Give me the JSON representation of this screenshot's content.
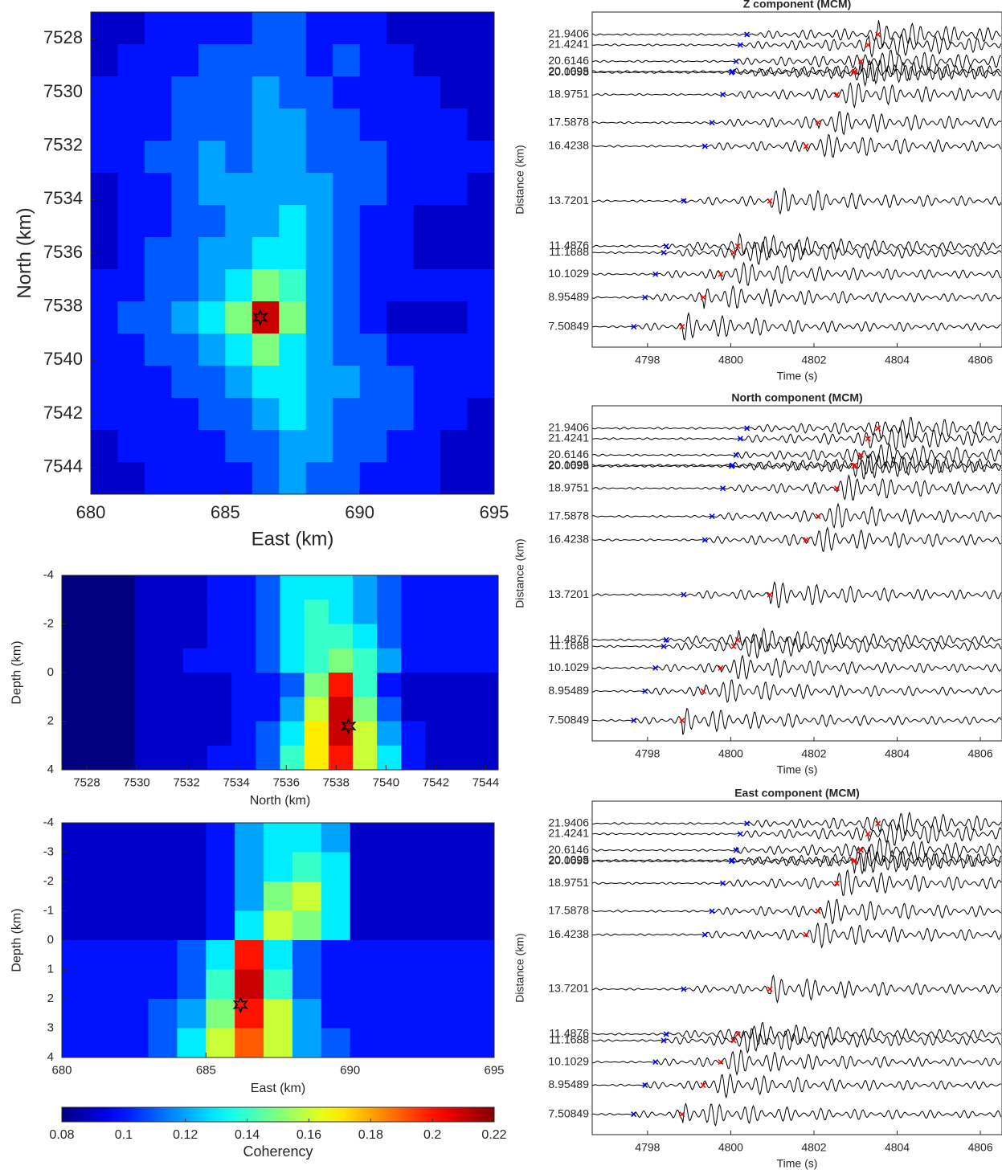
{
  "chart_data": [
    {
      "type": "heatmap",
      "xlabel": "East (km)",
      "ylabel": "North (km)",
      "xlim": [
        680,
        695
      ],
      "ylim": [
        7527,
        7545
      ],
      "yreverse": true,
      "xticks": [
        680,
        685,
        690,
        695
      ],
      "yticks": [
        7528,
        7530,
        7532,
        7534,
        7536,
        7538,
        7540,
        7542,
        7544
      ],
      "colormap": "jet",
      "clim": [
        0.08,
        0.22
      ],
      "marker": [
        686.3,
        7538.4
      ],
      "values": [
        [
          0.09,
          0.09,
          0.1,
          0.1,
          0.1,
          0.1,
          0.11,
          0.11,
          0.1,
          0.1,
          0.1,
          0.09,
          0.09,
          0.09,
          0.09
        ],
        [
          0.09,
          0.1,
          0.1,
          0.1,
          0.11,
          0.11,
          0.11,
          0.11,
          0.1,
          0.11,
          0.1,
          0.1,
          0.09,
          0.09,
          0.09
        ],
        [
          0.1,
          0.1,
          0.1,
          0.11,
          0.11,
          0.11,
          0.12,
          0.11,
          0.11,
          0.1,
          0.1,
          0.1,
          0.1,
          0.09,
          0.09
        ],
        [
          0.1,
          0.1,
          0.1,
          0.11,
          0.11,
          0.11,
          0.12,
          0.12,
          0.11,
          0.11,
          0.1,
          0.1,
          0.1,
          0.1,
          0.09
        ],
        [
          0.1,
          0.1,
          0.11,
          0.11,
          0.12,
          0.11,
          0.12,
          0.12,
          0.11,
          0.11,
          0.11,
          0.1,
          0.1,
          0.1,
          0.1
        ],
        [
          0.09,
          0.1,
          0.1,
          0.11,
          0.12,
          0.12,
          0.12,
          0.12,
          0.12,
          0.11,
          0.11,
          0.1,
          0.1,
          0.1,
          0.09
        ],
        [
          0.09,
          0.1,
          0.1,
          0.11,
          0.11,
          0.12,
          0.12,
          0.13,
          0.12,
          0.11,
          0.1,
          0.1,
          0.09,
          0.09,
          0.09
        ],
        [
          0.09,
          0.1,
          0.11,
          0.11,
          0.12,
          0.12,
          0.13,
          0.13,
          0.12,
          0.11,
          0.1,
          0.1,
          0.09,
          0.09,
          0.09
        ],
        [
          0.1,
          0.1,
          0.11,
          0.11,
          0.12,
          0.13,
          0.15,
          0.14,
          0.12,
          0.11,
          0.1,
          0.1,
          0.1,
          0.1,
          0.1
        ],
        [
          0.1,
          0.11,
          0.11,
          0.12,
          0.13,
          0.15,
          0.21,
          0.15,
          0.12,
          0.11,
          0.1,
          0.09,
          0.09,
          0.09,
          0.1
        ],
        [
          0.1,
          0.1,
          0.11,
          0.11,
          0.12,
          0.13,
          0.15,
          0.13,
          0.12,
          0.11,
          0.11,
          0.1,
          0.1,
          0.1,
          0.1
        ],
        [
          0.1,
          0.1,
          0.1,
          0.11,
          0.11,
          0.12,
          0.13,
          0.13,
          0.12,
          0.12,
          0.11,
          0.11,
          0.1,
          0.1,
          0.1
        ],
        [
          0.1,
          0.1,
          0.1,
          0.1,
          0.11,
          0.11,
          0.12,
          0.13,
          0.12,
          0.11,
          0.11,
          0.11,
          0.1,
          0.1,
          0.09
        ],
        [
          0.09,
          0.1,
          0.1,
          0.1,
          0.1,
          0.11,
          0.11,
          0.12,
          0.12,
          0.11,
          0.11,
          0.1,
          0.1,
          0.09,
          0.09
        ],
        [
          0.09,
          0.09,
          0.1,
          0.1,
          0.1,
          0.1,
          0.11,
          0.12,
          0.11,
          0.11,
          0.1,
          0.1,
          0.1,
          0.09,
          0.09
        ]
      ]
    },
    {
      "type": "heatmap",
      "xlabel": "North (km)",
      "ylabel": "Depth (km)",
      "xlim": [
        7527,
        7544.5
      ],
      "ylim": [
        -4,
        4
      ],
      "yreverse": true,
      "xticks": [
        7528,
        7530,
        7532,
        7534,
        7536,
        7538,
        7540,
        7542,
        7544
      ],
      "yticks": [
        -4,
        -2,
        0,
        2,
        4
      ],
      "colormap": "jet",
      "clim": [
        0.08,
        0.22
      ],
      "marker": [
        7538.5,
        2.2
      ],
      "values": [
        [
          0.08,
          0.08,
          0.08,
          0.09,
          0.09,
          0.09,
          0.1,
          0.1,
          0.11,
          0.13,
          0.13,
          0.13,
          0.12,
          0.11,
          0.1,
          0.1,
          0.1,
          0.1
        ],
        [
          0.08,
          0.08,
          0.08,
          0.09,
          0.09,
          0.09,
          0.1,
          0.1,
          0.11,
          0.13,
          0.14,
          0.13,
          0.12,
          0.11,
          0.1,
          0.1,
          0.1,
          0.1
        ],
        [
          0.08,
          0.08,
          0.08,
          0.09,
          0.09,
          0.09,
          0.1,
          0.1,
          0.11,
          0.13,
          0.14,
          0.14,
          0.13,
          0.11,
          0.1,
          0.1,
          0.1,
          0.1
        ],
        [
          0.08,
          0.08,
          0.08,
          0.09,
          0.09,
          0.1,
          0.1,
          0.1,
          0.11,
          0.13,
          0.14,
          0.15,
          0.14,
          0.12,
          0.1,
          0.1,
          0.1,
          0.1
        ],
        [
          0.08,
          0.08,
          0.08,
          0.09,
          0.09,
          0.09,
          0.09,
          0.1,
          0.1,
          0.11,
          0.15,
          0.2,
          0.14,
          0.1,
          0.09,
          0.09,
          0.09,
          0.09
        ],
        [
          0.08,
          0.08,
          0.08,
          0.09,
          0.09,
          0.09,
          0.09,
          0.1,
          0.1,
          0.12,
          0.16,
          0.21,
          0.15,
          0.11,
          0.09,
          0.09,
          0.09,
          0.09
        ],
        [
          0.08,
          0.08,
          0.08,
          0.09,
          0.09,
          0.09,
          0.09,
          0.1,
          0.11,
          0.13,
          0.17,
          0.21,
          0.16,
          0.12,
          0.1,
          0.09,
          0.09,
          0.09
        ],
        [
          0.08,
          0.08,
          0.08,
          0.09,
          0.09,
          0.09,
          0.1,
          0.1,
          0.11,
          0.14,
          0.17,
          0.2,
          0.16,
          0.13,
          0.1,
          0.09,
          0.09,
          0.09
        ]
      ]
    },
    {
      "type": "heatmap",
      "xlabel": "East (km)",
      "ylabel": "Depth (km)",
      "xlim": [
        680,
        695
      ],
      "ylim": [
        -4,
        4
      ],
      "yreverse": true,
      "xticks": [
        680,
        685,
        690,
        695
      ],
      "yticks": [
        -4,
        -3,
        -2,
        -1,
        0,
        1,
        2,
        3,
        4
      ],
      "colormap": "jet",
      "clim": [
        0.08,
        0.22
      ],
      "marker": [
        686.2,
        2.2
      ],
      "colorbar": {
        "label": "Coherency",
        "ticks": [
          0.08,
          0.1,
          0.12,
          0.14,
          0.16,
          0.18,
          0.2,
          0.22
        ]
      },
      "values": [
        [
          0.09,
          0.09,
          0.09,
          0.09,
          0.09,
          0.1,
          0.12,
          0.13,
          0.13,
          0.12,
          0.09,
          0.09,
          0.09,
          0.09,
          0.09
        ],
        [
          0.09,
          0.09,
          0.09,
          0.09,
          0.09,
          0.1,
          0.12,
          0.13,
          0.14,
          0.13,
          0.09,
          0.09,
          0.09,
          0.09,
          0.09
        ],
        [
          0.09,
          0.09,
          0.09,
          0.09,
          0.09,
          0.1,
          0.12,
          0.15,
          0.16,
          0.13,
          0.09,
          0.09,
          0.09,
          0.09,
          0.09
        ],
        [
          0.09,
          0.09,
          0.09,
          0.09,
          0.09,
          0.1,
          0.13,
          0.16,
          0.15,
          0.13,
          0.09,
          0.09,
          0.09,
          0.09,
          0.09
        ],
        [
          0.1,
          0.1,
          0.1,
          0.1,
          0.11,
          0.13,
          0.2,
          0.13,
          0.11,
          0.1,
          0.1,
          0.1,
          0.1,
          0.1,
          0.1
        ],
        [
          0.1,
          0.1,
          0.1,
          0.1,
          0.11,
          0.14,
          0.21,
          0.14,
          0.11,
          0.1,
          0.1,
          0.1,
          0.1,
          0.1,
          0.1
        ],
        [
          0.1,
          0.1,
          0.1,
          0.11,
          0.12,
          0.15,
          0.2,
          0.16,
          0.12,
          0.1,
          0.1,
          0.1,
          0.1,
          0.1,
          0.1
        ],
        [
          0.1,
          0.1,
          0.1,
          0.11,
          0.13,
          0.16,
          0.19,
          0.16,
          0.12,
          0.11,
          0.1,
          0.1,
          0.1,
          0.1,
          0.1
        ]
      ]
    },
    {
      "type": "waveform",
      "title": "Z component (MCM)",
      "xlabel": "Time (s)",
      "ylabel": "Distance (km)",
      "xlim": [
        4796.67,
        4806.52
      ],
      "xticks": [
        4798,
        4800,
        4802,
        4804,
        4806
      ],
      "ylim": [
        6.5,
        23.05
      ],
      "yticks": [
        21.9406,
        21.4241,
        20.6146,
        20.1095,
        20.0698,
        18.9751,
        17.5878,
        16.4238,
        13.7201,
        11.4876,
        11.1688,
        10.1029,
        8.95489,
        7.50849
      ],
      "picks": [
        {
          "color": "#0000ff",
          "values": [
            4800.39,
            4800.23,
            4800.13,
            4800.04,
            4800.02,
            4799.81,
            4799.55,
            4799.38,
            4798.87,
            4798.45,
            4798.39,
            4798.19,
            4797.94,
            4797.67
          ]
        },
        {
          "color": "#ff0000",
          "values": [
            4803.54,
            4803.3,
            4803.13,
            4802.98,
            4802.96,
            4802.55,
            4802.1,
            4801.81,
            4800.94,
            4800.17,
            4800.07,
            4799.76,
            4799.34,
            4798.83
          ]
        }
      ]
    },
    {
      "type": "waveform",
      "title": "North component (MCM)",
      "xlabel": "Time (s)",
      "ylabel": "Distance (km)",
      "xlim": [
        4796.67,
        4806.52
      ],
      "xticks": [
        4798,
        4800,
        4802,
        4804,
        4806
      ],
      "ylim": [
        6.5,
        23.05
      ],
      "yticks": [
        21.9406,
        21.4241,
        20.6146,
        20.1095,
        20.0698,
        18.9751,
        17.5878,
        16.4238,
        13.7201,
        11.4876,
        11.1688,
        10.1029,
        8.95489,
        7.50849
      ],
      "picks": [
        {
          "color": "#0000ff",
          "values": [
            4800.39,
            4800.23,
            4800.13,
            4800.04,
            4800.02,
            4799.81,
            4799.55,
            4799.38,
            4798.87,
            4798.45,
            4798.39,
            4798.19,
            4797.94,
            4797.67
          ]
        },
        {
          "color": "#ff0000",
          "values": [
            4803.54,
            4803.3,
            4803.13,
            4802.98,
            4802.96,
            4802.55,
            4802.1,
            4801.81,
            4800.94,
            4800.17,
            4800.07,
            4799.76,
            4799.34,
            4798.83
          ]
        }
      ]
    },
    {
      "type": "waveform",
      "title": "East component (MCM)",
      "xlabel": "Time (s)",
      "ylabel": "Distance (km)",
      "xlim": [
        4796.67,
        4806.52
      ],
      "xticks": [
        4798,
        4800,
        4802,
        4804,
        4806
      ],
      "ylim": [
        6.5,
        23.05
      ],
      "yticks": [
        21.9406,
        21.4241,
        20.6146,
        20.1095,
        20.0698,
        18.9751,
        17.5878,
        16.4238,
        13.7201,
        11.4876,
        11.1688,
        10.1029,
        8.95489,
        7.50849
      ],
      "picks": [
        {
          "color": "#0000ff",
          "values": [
            4800.39,
            4800.23,
            4800.13,
            4800.04,
            4800.02,
            4799.81,
            4799.55,
            4799.38,
            4798.87,
            4798.45,
            4798.39,
            4798.19,
            4797.94,
            4797.67
          ]
        },
        {
          "color": "#ff0000",
          "values": [
            4803.54,
            4803.3,
            4803.13,
            4802.98,
            4802.96,
            4802.55,
            4802.1,
            4801.81,
            4800.94,
            4800.17,
            4800.07,
            4799.76,
            4799.34,
            4798.83
          ]
        }
      ]
    }
  ]
}
